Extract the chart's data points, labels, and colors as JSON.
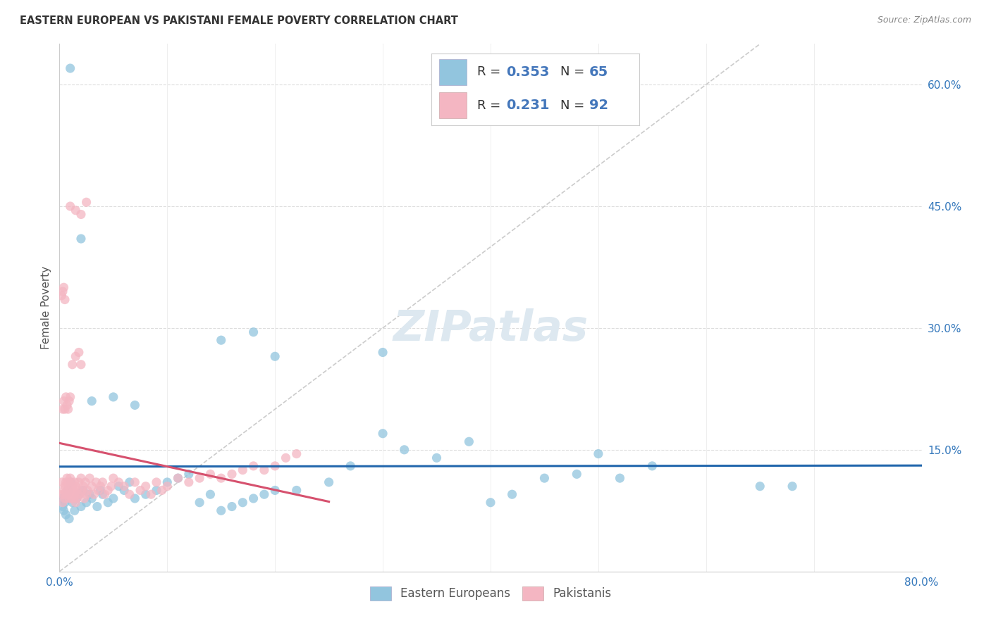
{
  "title": "EASTERN EUROPEAN VS PAKISTANI FEMALE POVERTY CORRELATION CHART",
  "source": "Source: ZipAtlas.com",
  "ylabel": "Female Poverty",
  "xlim": [
    0,
    0.8
  ],
  "ylim": [
    0,
    0.65
  ],
  "blue_color": "#92c5de",
  "pink_color": "#f4b6c2",
  "blue_line_color": "#2166ac",
  "pink_line_color": "#d6516e",
  "dashed_line_color": "#cccccc",
  "legend_text_color": "#4477bb",
  "R_blue": 0.353,
  "N_blue": 65,
  "R_pink": 0.231,
  "N_pink": 92,
  "blue_scatter_x": [
    0.002,
    0.003,
    0.004,
    0.005,
    0.006,
    0.007,
    0.008,
    0.009,
    0.01,
    0.012,
    0.014,
    0.016,
    0.018,
    0.02,
    0.022,
    0.025,
    0.028,
    0.03,
    0.035,
    0.038,
    0.04,
    0.045,
    0.05,
    0.055,
    0.06,
    0.065,
    0.07,
    0.08,
    0.09,
    0.1,
    0.11,
    0.12,
    0.13,
    0.14,
    0.15,
    0.16,
    0.17,
    0.18,
    0.19,
    0.2,
    0.22,
    0.25,
    0.27,
    0.3,
    0.32,
    0.35,
    0.38,
    0.4,
    0.42,
    0.45,
    0.48,
    0.5,
    0.52,
    0.55,
    0.65,
    0.68,
    0.15,
    0.18,
    0.2,
    0.3,
    0.03,
    0.05,
    0.07,
    0.02,
    0.01
  ],
  "blue_scatter_y": [
    0.09,
    0.08,
    0.075,
    0.085,
    0.07,
    0.095,
    0.1,
    0.065,
    0.11,
    0.085,
    0.075,
    0.09,
    0.095,
    0.08,
    0.1,
    0.085,
    0.095,
    0.09,
    0.08,
    0.1,
    0.095,
    0.085,
    0.09,
    0.105,
    0.1,
    0.11,
    0.09,
    0.095,
    0.1,
    0.11,
    0.115,
    0.12,
    0.085,
    0.095,
    0.075,
    0.08,
    0.085,
    0.09,
    0.095,
    0.1,
    0.1,
    0.11,
    0.13,
    0.17,
    0.15,
    0.14,
    0.16,
    0.085,
    0.095,
    0.115,
    0.12,
    0.145,
    0.115,
    0.13,
    0.105,
    0.105,
    0.285,
    0.295,
    0.265,
    0.27,
    0.21,
    0.215,
    0.205,
    0.41,
    0.62
  ],
  "pink_scatter_x": [
    0.001,
    0.002,
    0.003,
    0.004,
    0.004,
    0.005,
    0.005,
    0.006,
    0.006,
    0.007,
    0.007,
    0.008,
    0.008,
    0.009,
    0.009,
    0.01,
    0.01,
    0.011,
    0.011,
    0.012,
    0.012,
    0.013,
    0.013,
    0.014,
    0.014,
    0.015,
    0.015,
    0.016,
    0.016,
    0.017,
    0.018,
    0.019,
    0.02,
    0.021,
    0.022,
    0.023,
    0.024,
    0.025,
    0.026,
    0.028,
    0.03,
    0.032,
    0.034,
    0.036,
    0.038,
    0.04,
    0.042,
    0.045,
    0.048,
    0.05,
    0.055,
    0.06,
    0.065,
    0.07,
    0.075,
    0.08,
    0.085,
    0.09,
    0.095,
    0.1,
    0.11,
    0.12,
    0.13,
    0.14,
    0.15,
    0.16,
    0.17,
    0.18,
    0.19,
    0.2,
    0.21,
    0.22,
    0.003,
    0.004,
    0.005,
    0.006,
    0.007,
    0.008,
    0.009,
    0.01,
    0.012,
    0.015,
    0.018,
    0.02,
    0.01,
    0.015,
    0.02,
    0.025,
    0.002,
    0.003,
    0.004,
    0.005
  ],
  "pink_scatter_y": [
    0.095,
    0.11,
    0.085,
    0.1,
    0.095,
    0.105,
    0.09,
    0.11,
    0.095,
    0.115,
    0.1,
    0.095,
    0.11,
    0.09,
    0.105,
    0.095,
    0.115,
    0.09,
    0.11,
    0.095,
    0.105,
    0.09,
    0.1,
    0.095,
    0.11,
    0.085,
    0.105,
    0.09,
    0.1,
    0.095,
    0.11,
    0.095,
    0.115,
    0.1,
    0.105,
    0.09,
    0.11,
    0.095,
    0.1,
    0.115,
    0.105,
    0.095,
    0.11,
    0.1,
    0.105,
    0.11,
    0.095,
    0.1,
    0.105,
    0.115,
    0.11,
    0.105,
    0.095,
    0.11,
    0.1,
    0.105,
    0.095,
    0.11,
    0.1,
    0.105,
    0.115,
    0.11,
    0.115,
    0.12,
    0.115,
    0.12,
    0.125,
    0.13,
    0.125,
    0.13,
    0.14,
    0.145,
    0.2,
    0.21,
    0.2,
    0.215,
    0.205,
    0.2,
    0.21,
    0.215,
    0.255,
    0.265,
    0.27,
    0.255,
    0.45,
    0.445,
    0.44,
    0.455,
    0.34,
    0.345,
    0.35,
    0.335
  ]
}
